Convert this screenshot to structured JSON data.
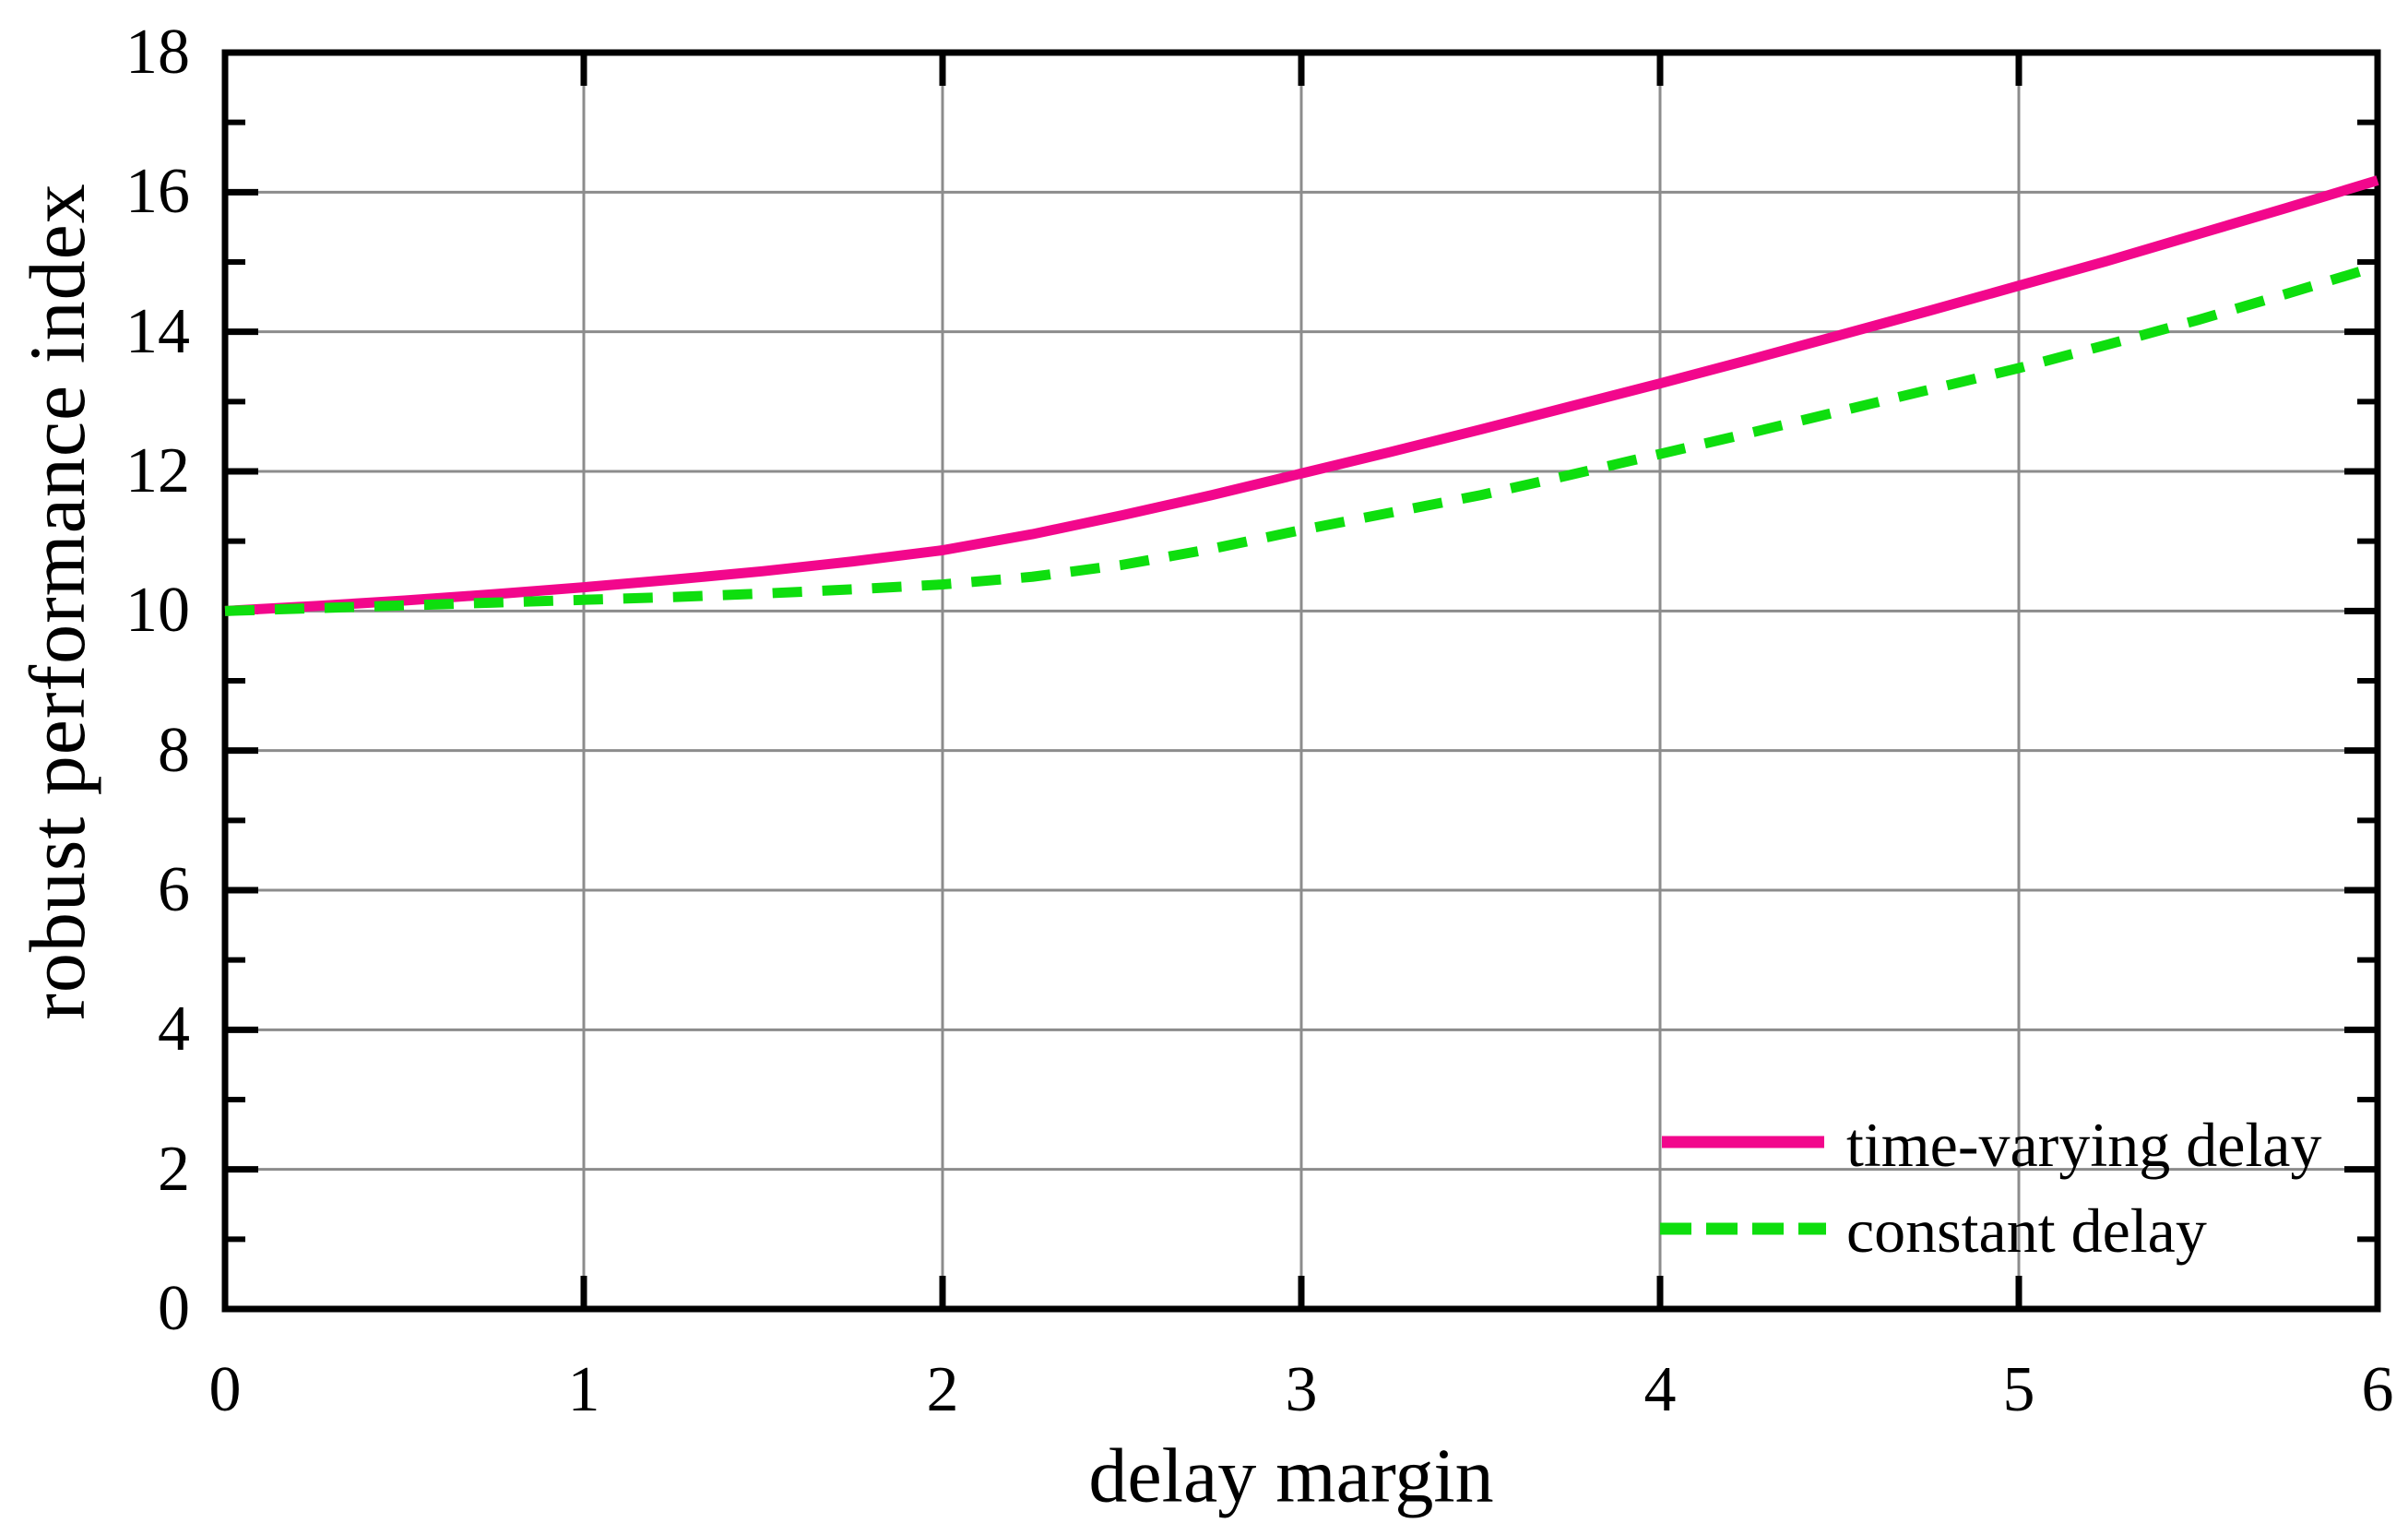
{
  "figure": {
    "background": "#FFFFFF",
    "text_color": "#000000"
  },
  "chart_data": {
    "type": "line",
    "title": "",
    "xlabel": "delay margin",
    "ylabel": "robust performance index",
    "xlim": [
      0,
      6
    ],
    "ylim": [
      0,
      18
    ],
    "x_major_ticks": [
      0,
      1,
      2,
      3,
      4,
      5,
      6
    ],
    "y_major_ticks": [
      0,
      2,
      4,
      6,
      8,
      10,
      12,
      14,
      16,
      18
    ],
    "y_minor_ticks": [
      1,
      3,
      5,
      7,
      9,
      11,
      13,
      15,
      17
    ],
    "grid": true,
    "grid_color": "#8C8C8C",
    "axis_color": "#000000",
    "legend_position": "lower right",
    "x": [
      0,
      0.25,
      0.5,
      0.75,
      1,
      1.25,
      1.5,
      1.75,
      2,
      2.25,
      2.5,
      2.75,
      3,
      3.25,
      3.5,
      3.75,
      4,
      4.25,
      4.5,
      4.75,
      5,
      5.25,
      5.5,
      5.75,
      6
    ],
    "series": [
      {
        "name": "time-varying delay",
        "color": "#F2078C",
        "style": "solid",
        "values": [
          10.0,
          10.07,
          10.15,
          10.24,
          10.34,
          10.45,
          10.57,
          10.71,
          10.87,
          11.1,
          11.37,
          11.66,
          11.97,
          12.28,
          12.6,
          12.93,
          13.26,
          13.6,
          13.95,
          14.3,
          14.66,
          15.02,
          15.4,
          15.78,
          16.17
        ]
      },
      {
        "name": "constant delay",
        "color": "#0EDE0E",
        "style": "dashed",
        "values": [
          10.0,
          10.04,
          10.08,
          10.12,
          10.16,
          10.2,
          10.25,
          10.31,
          10.38,
          10.49,
          10.66,
          10.89,
          11.16,
          11.41,
          11.66,
          11.95,
          12.25,
          12.55,
          12.86,
          13.17,
          13.48,
          13.82,
          14.17,
          14.55,
          14.94
        ]
      }
    ]
  }
}
